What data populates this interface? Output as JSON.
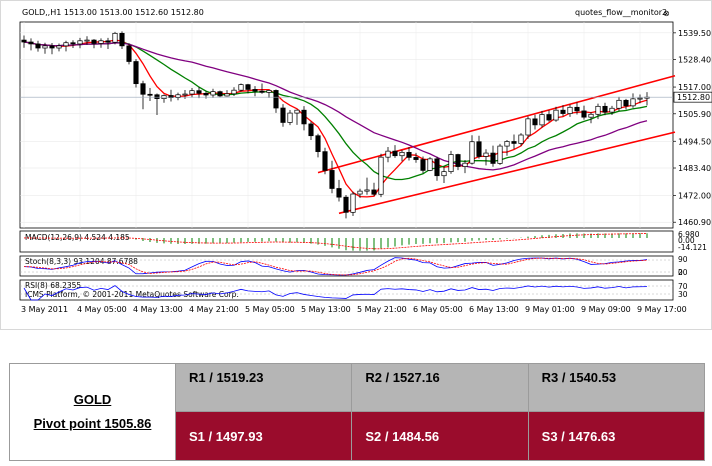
{
  "chart_data": {
    "type": "candlestick",
    "symbol_header": "GOLD,,H1  1513.00 1513.00 1512.60 1512.80",
    "indicator_label": "quotes_flow__monitor2",
    "close_glyph": "⊗",
    "price_ticks": [
      "1539.50",
      "1528.40",
      "1517.00",
      "1505.90",
      "1494.50",
      "1483.40",
      "1472.00",
      "1460.90"
    ],
    "ylim": [
      1458.5,
      1544
    ],
    "current_price_label": "1512.80",
    "current_price": 1512.8,
    "x_labels": [
      "3 May 2011",
      "4 May 05:00",
      "4 May 13:00",
      "4 May 21:00",
      "5 May 05:00",
      "5 May 13:00",
      "5 May 21:00",
      "6 May 05:00",
      "6 May 13:00",
      "9 May 01:00",
      "9 May 09:00",
      "9 May 17:00"
    ],
    "x_label_bars": [
      0,
      8,
      16,
      24,
      32,
      40,
      48,
      56,
      64,
      72,
      80,
      88
    ],
    "candles": [
      [
        1536.5,
        1538.4,
        1533.3,
        1535.7
      ],
      [
        1535.7,
        1537.2,
        1532.2,
        1534.9
      ],
      [
        1534.9,
        1536.2,
        1531.7,
        1533.2
      ],
      [
        1533.2,
        1535.4,
        1530.8,
        1534.1
      ],
      [
        1534.1,
        1535.3,
        1530.6,
        1533.2
      ],
      [
        1533.2,
        1535.1,
        1531.8,
        1534.1
      ],
      [
        1534.1,
        1536.2,
        1531.8,
        1535.4
      ],
      [
        1535.4,
        1536.4,
        1533.2,
        1534.9
      ],
      [
        1534.9,
        1537.4,
        1533.1,
        1536.2
      ],
      [
        1536.2,
        1538.1,
        1534.5,
        1536.5
      ],
      [
        1536.5,
        1536.9,
        1533.1,
        1535.1
      ],
      [
        1535.1,
        1537.2,
        1533.3,
        1536.2
      ],
      [
        1536.2,
        1537.4,
        1532.8,
        1535.6
      ],
      [
        1535.6,
        1539.9,
        1534.7,
        1539.3
      ],
      [
        1539.3,
        1540.1,
        1532.8,
        1534.1
      ],
      [
        1534.1,
        1535.1,
        1526.4,
        1527.6
      ],
      [
        1527.6,
        1528.6,
        1516.8,
        1518.4
      ],
      [
        1518.4,
        1519.6,
        1507.8,
        1514.0
      ],
      [
        1514.0,
        1516.6,
        1511.2,
        1513.8
      ],
      [
        1513.8,
        1514.3,
        1505.4,
        1512.2
      ],
      [
        1512.2,
        1513.9,
        1510.5,
        1513.5
      ],
      [
        1513.5,
        1515.9,
        1511.0,
        1512.6
      ],
      [
        1512.6,
        1514.7,
        1511.5,
        1513.8
      ],
      [
        1513.8,
        1515.8,
        1512.1,
        1514.1
      ],
      [
        1514.1,
        1516.6,
        1512.6,
        1515.5
      ],
      [
        1515.5,
        1517.0,
        1512.4,
        1514.4
      ],
      [
        1514.4,
        1515.2,
        1512.2,
        1513.7
      ],
      [
        1513.7,
        1516.3,
        1512.5,
        1515.1
      ],
      [
        1515.1,
        1515.5,
        1512.6,
        1513.3
      ],
      [
        1513.3,
        1515.7,
        1513.1,
        1514.2
      ],
      [
        1514.2,
        1516.9,
        1513.3,
        1515.7
      ],
      [
        1515.7,
        1518.5,
        1515.1,
        1518.0
      ],
      [
        1518.0,
        1518.3,
        1514.4,
        1516.0
      ],
      [
        1516.0,
        1517.4,
        1513.2,
        1515.3
      ],
      [
        1515.3,
        1518.5,
        1514.2,
        1514.8
      ],
      [
        1514.8,
        1515.8,
        1512.5,
        1515.6
      ],
      [
        1515.6,
        1516.0,
        1506.3,
        1508.3
      ],
      [
        1508.3,
        1509.9,
        1500.5,
        1502.3
      ],
      [
        1502.3,
        1507.5,
        1501.2,
        1506.2
      ],
      [
        1506.2,
        1507.6,
        1501.3,
        1507.4
      ],
      [
        1507.4,
        1509.1,
        1499.0,
        1501.7
      ],
      [
        1501.7,
        1502.7,
        1495.0,
        1496.8
      ],
      [
        1496.8,
        1497.6,
        1487.8,
        1490.2
      ],
      [
        1490.2,
        1491.8,
        1480.8,
        1482.4
      ],
      [
        1482.4,
        1486.4,
        1472.9,
        1474.9
      ],
      [
        1474.9,
        1478.5,
        1469.5,
        1471.3
      ],
      [
        1471.3,
        1472.2,
        1462.5,
        1465.0
      ],
      [
        1465.0,
        1473.6,
        1463.5,
        1472.6
      ],
      [
        1472.6,
        1474.8,
        1471.0,
        1473.8
      ],
      [
        1473.8,
        1479.4,
        1472.3,
        1474.3
      ],
      [
        1474.3,
        1477.3,
        1471.8,
        1472.5
      ],
      [
        1472.5,
        1489.3,
        1471.3,
        1487.9
      ],
      [
        1487.9,
        1492.1,
        1485.8,
        1490.4
      ],
      [
        1490.4,
        1492.9,
        1487.6,
        1488.5
      ],
      [
        1488.5,
        1490.8,
        1486.2,
        1489.9
      ],
      [
        1489.9,
        1492.1,
        1486.5,
        1487.8
      ],
      [
        1487.8,
        1489.7,
        1485.6,
        1486.9
      ],
      [
        1486.9,
        1488.2,
        1481.2,
        1482.4
      ],
      [
        1482.4,
        1487.9,
        1482.1,
        1487.2
      ],
      [
        1487.2,
        1488.1,
        1478.1,
        1480.2
      ],
      [
        1480.2,
        1484.0,
        1477.2,
        1481.9
      ],
      [
        1481.9,
        1490.5,
        1481.0,
        1489.0
      ],
      [
        1489.0,
        1489.3,
        1482.5,
        1484.0
      ],
      [
        1484.0,
        1486.7,
        1481.3,
        1485.4
      ],
      [
        1485.4,
        1497.0,
        1484.8,
        1494.3
      ],
      [
        1494.3,
        1496.8,
        1487.3,
        1488.2
      ],
      [
        1488.2,
        1491.2,
        1484.5,
        1489.6
      ],
      [
        1489.6,
        1492.7,
        1483.9,
        1485.3
      ],
      [
        1485.3,
        1493.4,
        1484.7,
        1492.5
      ],
      [
        1492.5,
        1495.0,
        1488.5,
        1494.4
      ],
      [
        1494.4,
        1497.3,
        1491.3,
        1493.6
      ],
      [
        1493.6,
        1497.9,
        1492.6,
        1497.1
      ],
      [
        1497.1,
        1504.8,
        1495.5,
        1503.8
      ],
      [
        1503.8,
        1505.5,
        1499.4,
        1501.3
      ],
      [
        1501.3,
        1507.1,
        1500.2,
        1505.6
      ],
      [
        1505.6,
        1507.3,
        1502.6,
        1503.3
      ],
      [
        1503.3,
        1508.8,
        1502.6,
        1507.4
      ],
      [
        1507.4,
        1509.5,
        1504.9,
        1506.0
      ],
      [
        1506.0,
        1509.7,
        1504.6,
        1508.6
      ],
      [
        1508.6,
        1510.7,
        1505.6,
        1507.1
      ],
      [
        1507.1,
        1509.3,
        1503.5,
        1504.5
      ],
      [
        1504.5,
        1506.6,
        1502.0,
        1505.7
      ],
      [
        1505.7,
        1510.1,
        1503.7,
        1509.0
      ],
      [
        1509.0,
        1510.5,
        1505.3,
        1506.6
      ],
      [
        1506.6,
        1509.2,
        1505.4,
        1508.2
      ],
      [
        1508.2,
        1512.9,
        1507.1,
        1511.5
      ],
      [
        1511.5,
        1512.1,
        1507.7,
        1509.2
      ],
      [
        1509.2,
        1514.4,
        1508.4,
        1512.1
      ],
      [
        1512.1,
        1513.9,
        1510.3,
        1512.4
      ],
      [
        1512.4,
        1514.9,
        1509.4,
        1512.8
      ]
    ],
    "ma_periods": [
      5,
      12,
      25
    ],
    "trend_lines": [
      {
        "from": [
          42,
          1481.5
        ],
        "to": [
          93,
          1521.7
        ]
      },
      {
        "from": [
          45,
          1464.6
        ],
        "to": [
          93,
          1498.3
        ]
      }
    ],
    "macd": {
      "label": "MACD(12,26,9) 4.524 4.185",
      "ticks": [
        "6.980",
        "0.00",
        "-14.121"
      ],
      "range": [
        -14.121,
        6.98
      ]
    },
    "stoch": {
      "label": "Stoch(8,3,3) 93.1204 87.6788",
      "ticks": [
        "90",
        "20",
        "0"
      ],
      "range": [
        0,
        100
      ]
    },
    "rsi": {
      "label": "RSI(8) 68.2355",
      "watermark": "ICMS Platform, © 2001-2011 MetaQuotes Software Corp.",
      "ticks": [
        "70",
        "30"
      ],
      "range": [
        0,
        100
      ]
    },
    "colors": {
      "ma_fast": "#ff0000",
      "ma_mid": "#008000",
      "ma_slow": "#800080",
      "trend": "#ff0000",
      "macd_hist": "#008000",
      "stoch_main": "#0000ff",
      "stoch_signal": "#ff0000",
      "rsi": "#0000ff"
    }
  },
  "pivot": {
    "symbol": "GOLD",
    "pivot_text": "Pivot point 1505.86",
    "r1": "R1 / 1519.23",
    "r2": "R2 / 1527.16",
    "r3": "R3 / 1540.53",
    "s1": "S1 / 1497.93",
    "s2": "S2 / 1484.56",
    "s3": "S3 / 1476.63",
    "res_color": "#b5b5b5",
    "sup_color": "#9a0c2c"
  }
}
